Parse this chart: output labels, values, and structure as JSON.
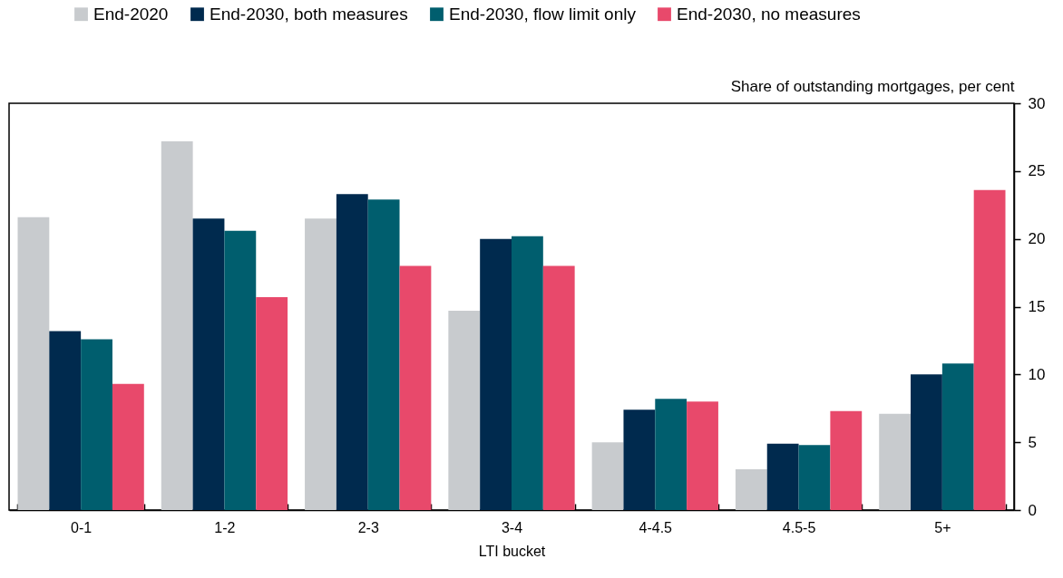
{
  "chart_data": {
    "type": "bar",
    "xlabel": "LTI bucket",
    "ylabel": "Share of outstanding mortgages, per cent",
    "categories": [
      "0-1",
      "1-2",
      "2-3",
      "3-4",
      "4-4.5",
      "4.5-5",
      "5+"
    ],
    "series": [
      {
        "name": "End-2020",
        "color": "#c8cbce",
        "values": [
          21.6,
          27.2,
          21.5,
          14.7,
          5.0,
          3.0,
          7.1
        ]
      },
      {
        "name": "End-2030, both measures",
        "color": "#002a4e",
        "values": [
          13.2,
          21.5,
          23.3,
          20.0,
          7.4,
          4.9,
          10.0
        ]
      },
      {
        "name": "End-2030, flow limit only",
        "color": "#005e6e",
        "values": [
          12.6,
          20.6,
          22.9,
          20.2,
          8.2,
          4.8,
          10.8
        ]
      },
      {
        "name": "End-2030, no measures",
        "color": "#e8496b",
        "values": [
          9.3,
          15.7,
          18.0,
          18.0,
          8.0,
          7.3,
          23.6
        ]
      }
    ],
    "ylim": [
      0,
      30
    ],
    "yticks": [
      0,
      5,
      10,
      15,
      20,
      25,
      30
    ],
    "grid": false,
    "legend": "top"
  }
}
